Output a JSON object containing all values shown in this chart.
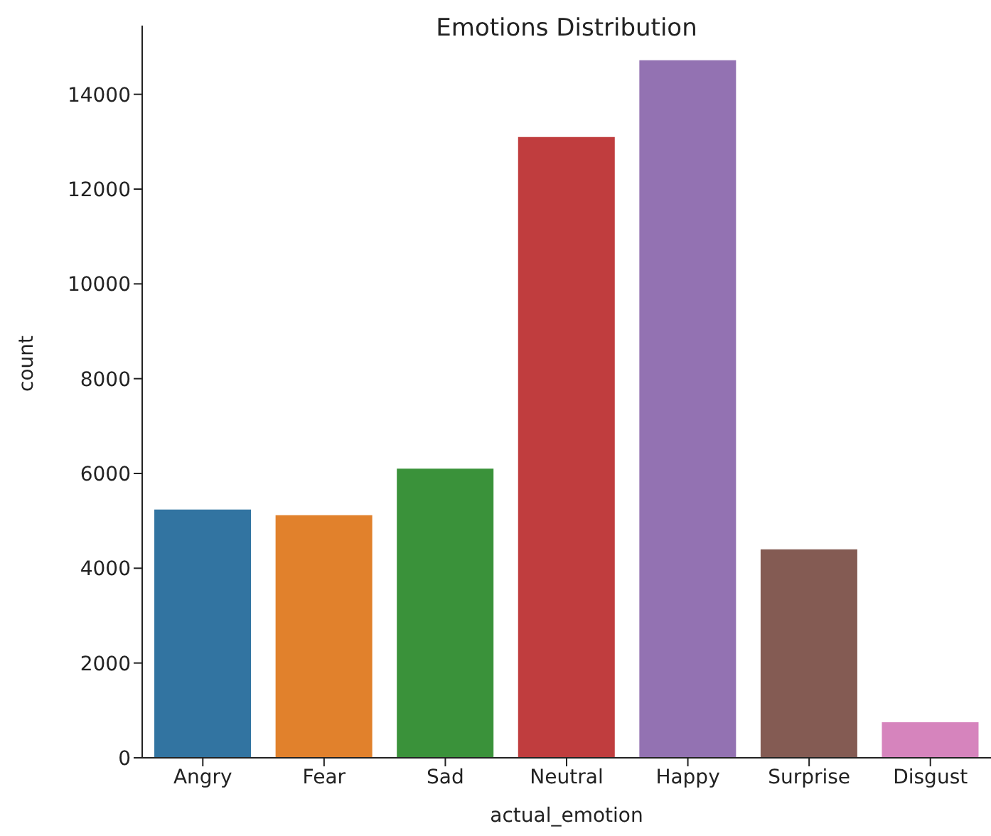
{
  "chart_data": {
    "type": "bar",
    "title": "Emotions Distribution",
    "xlabel": "actual_emotion",
    "ylabel": "count",
    "categories": [
      "Angry",
      "Fear",
      "Sad",
      "Neutral",
      "Happy",
      "Surprise",
      "Disgust"
    ],
    "values": [
      5240,
      5120,
      6100,
      13100,
      14720,
      4400,
      750
    ],
    "colors": [
      "#3274a1",
      "#e1812c",
      "#3a923a",
      "#c03d3e",
      "#9372b2",
      "#845b53",
      "#d684bd"
    ],
    "ylim": [
      0,
      15450
    ],
    "yticks": [
      0,
      2000,
      4000,
      6000,
      8000,
      10000,
      12000,
      14000
    ],
    "grid": false,
    "legend": false
  }
}
